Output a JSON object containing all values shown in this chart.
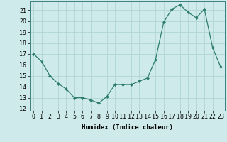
{
  "x": [
    0,
    1,
    2,
    3,
    4,
    5,
    6,
    7,
    8,
    9,
    10,
    11,
    12,
    13,
    14,
    15,
    16,
    17,
    18,
    19,
    20,
    21,
    22,
    23
  ],
  "y": [
    17.0,
    16.3,
    15.0,
    14.3,
    13.8,
    13.0,
    13.0,
    12.8,
    12.5,
    13.1,
    14.2,
    14.2,
    14.2,
    14.5,
    14.8,
    16.5,
    19.9,
    21.1,
    21.5,
    20.8,
    20.3,
    21.1,
    17.6,
    15.8
  ],
  "line_color": "#2d7d6e",
  "marker": "D",
  "marker_size": 2,
  "bg_color": "#ceeaea",
  "grid_color": "#b0d4d4",
  "xlabel": "Humidex (Indice chaleur)",
  "xlim": [
    -0.5,
    23.5
  ],
  "ylim": [
    11.8,
    21.8
  ],
  "yticks": [
    12,
    13,
    14,
    15,
    16,
    17,
    18,
    19,
    20,
    21
  ],
  "xticks": [
    0,
    1,
    2,
    3,
    4,
    5,
    6,
    7,
    8,
    9,
    10,
    11,
    12,
    13,
    14,
    15,
    16,
    17,
    18,
    19,
    20,
    21,
    22,
    23
  ],
  "xlabel_fontsize": 6.5,
  "tick_fontsize": 6.0
}
